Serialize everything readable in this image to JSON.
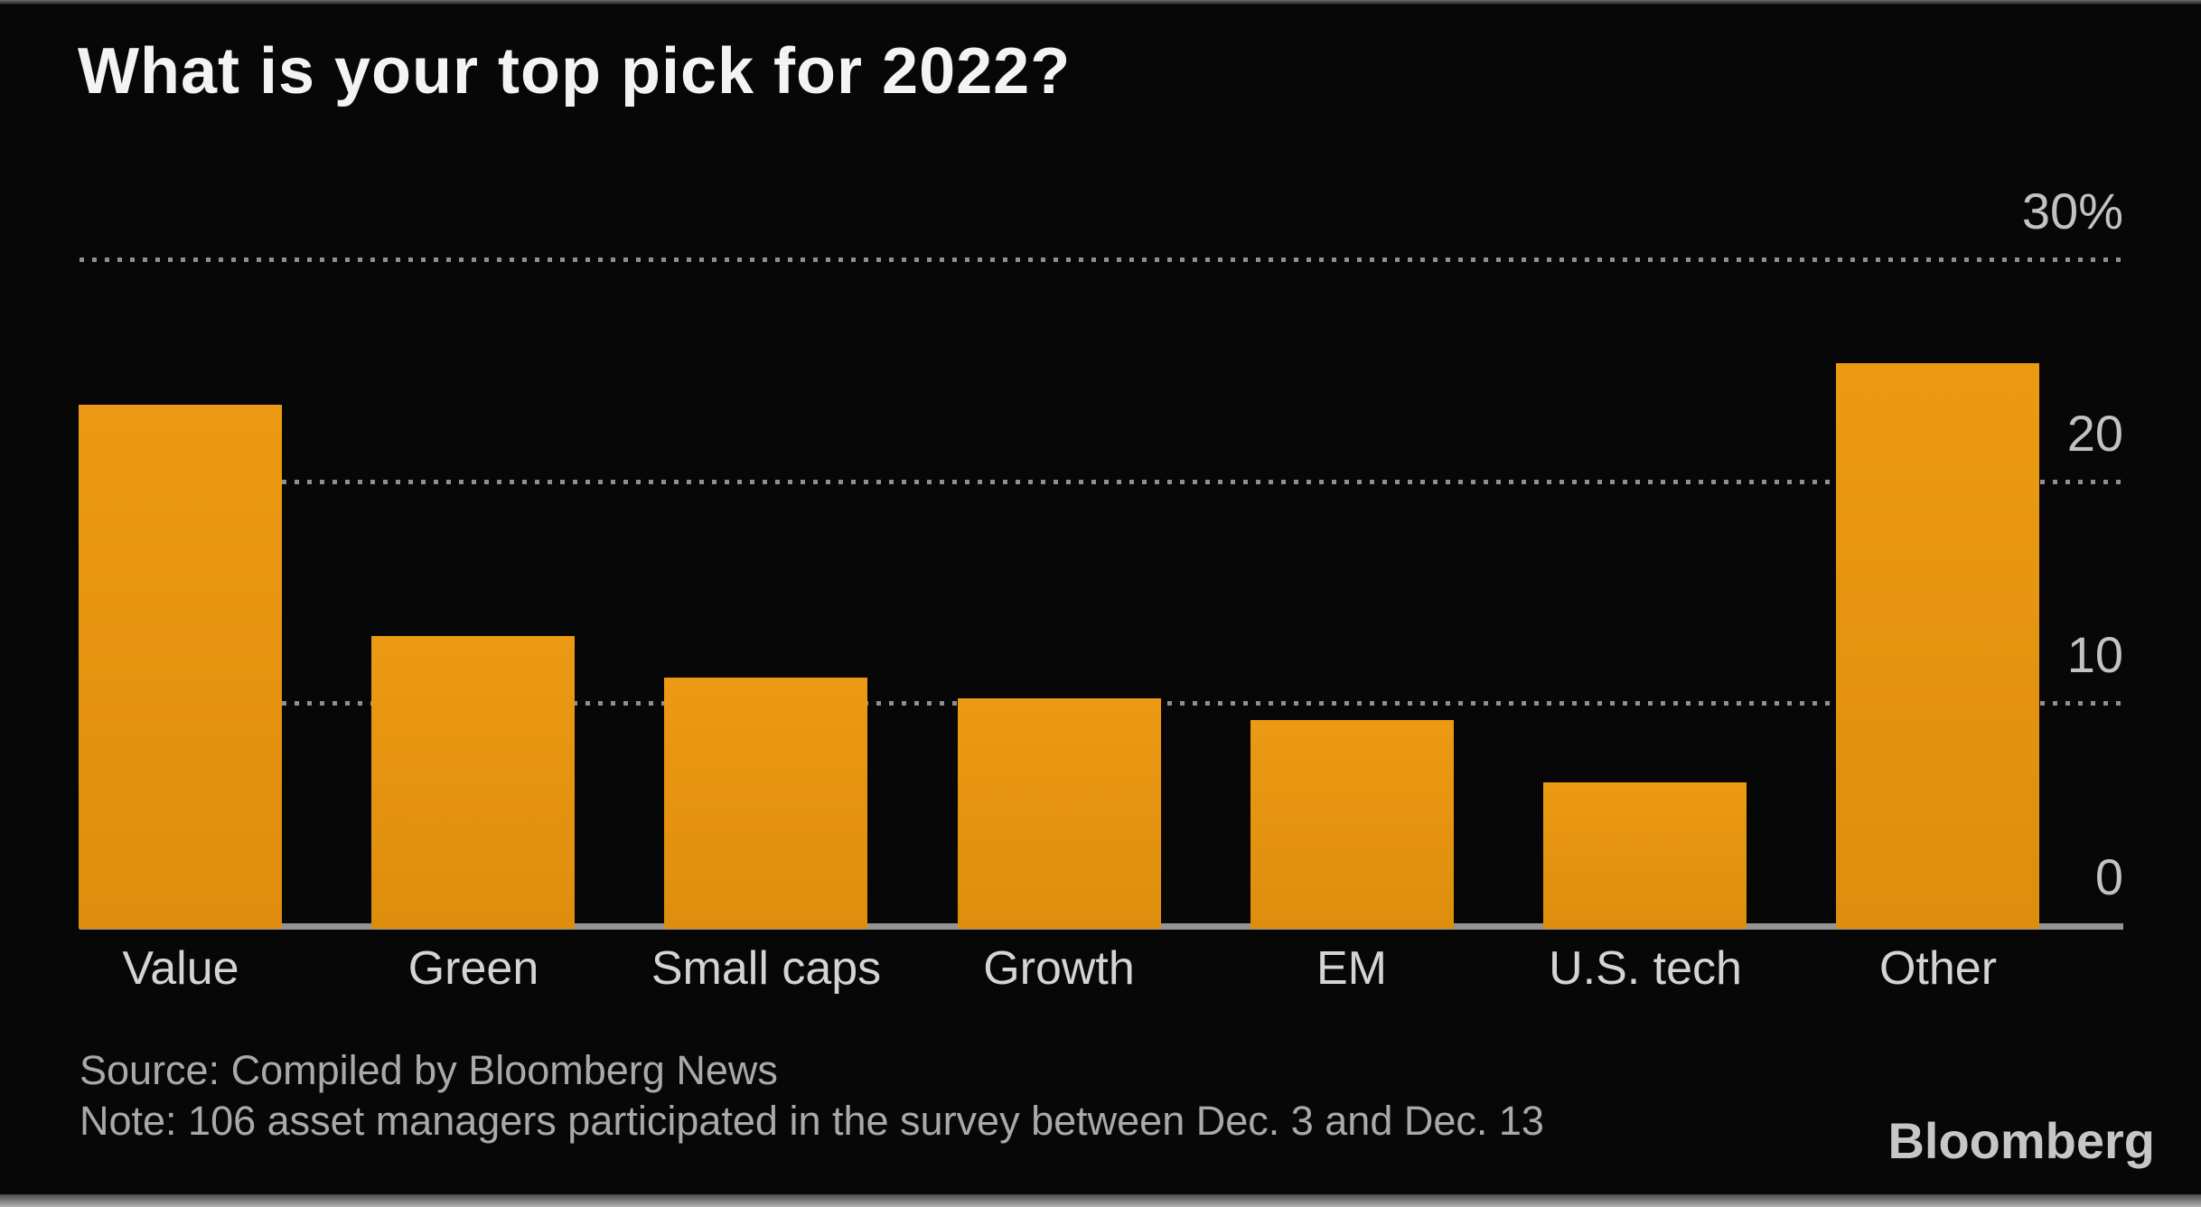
{
  "title": "What is your top pick for 2022?",
  "chart_data": {
    "type": "bar",
    "title": "What is your top pick for 2022?",
    "categories": [
      "Value",
      "Green",
      "Small caps",
      "Growth",
      "EM",
      "U.S. tech",
      "Other"
    ],
    "values": [
      23.6,
      13.2,
      11.3,
      10.4,
      9.4,
      6.6,
      25.5
    ],
    "xlabel": "",
    "ylabel": "",
    "ylim": [
      0,
      30
    ],
    "yticks": [
      0,
      10,
      20,
      30
    ],
    "ytick_labels": [
      "0",
      "10",
      "20",
      "30%"
    ],
    "grid": "horizontal-dotted",
    "legend": "none",
    "bar_color": "#e08e0f",
    "bar_color_top": "#ec9a13",
    "bar_color_bottom": "#de8d0e"
  },
  "footer": {
    "source": "Source: Compiled by Bloomberg News",
    "note": "Note: 106 asset managers participated in the survey between Dec. 3 and Dec. 13",
    "brand": "Bloomberg"
  },
  "colors": {
    "background": "#070707",
    "title_text": "#f3f3f3",
    "tick_text": "#c2c2c2",
    "axis_line": "#949494",
    "gridline": "#8f8f8f",
    "footer_text": "#a9a9a9",
    "brand_text": "#c6c6c6"
  }
}
